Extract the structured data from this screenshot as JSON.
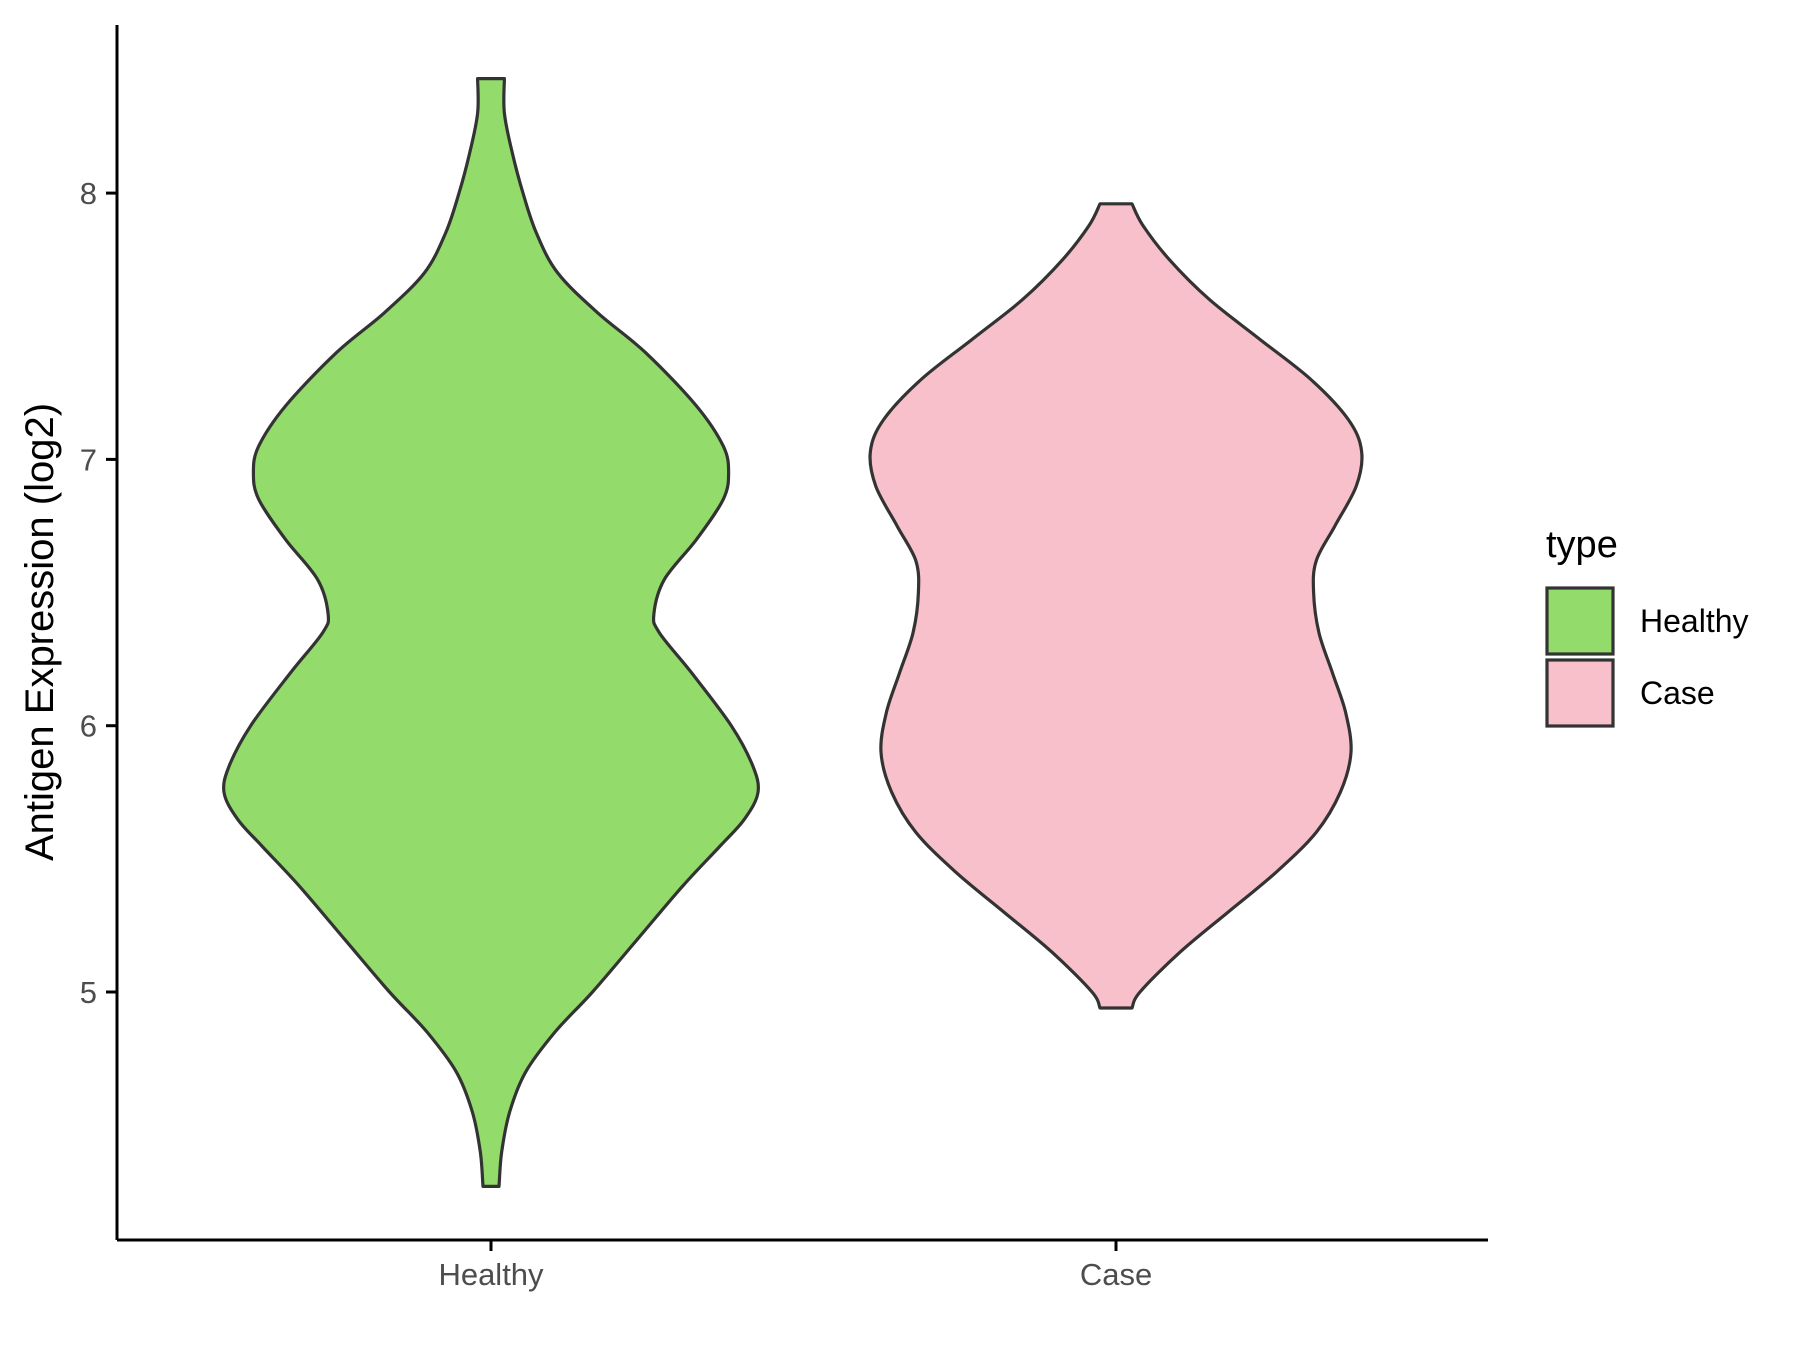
{
  "chart_data": {
    "type": "violin",
    "title": "",
    "xlabel": "",
    "ylabel": "Antigen Expression (log2)",
    "categories": [
      "Healthy",
      "Case"
    ],
    "y_ticks": [
      5,
      6,
      7,
      8
    ],
    "ylim": [
      4.1,
      8.6
    ],
    "grid": false,
    "legend": {
      "title": "type",
      "placement": "right",
      "entries": [
        "Healthy",
        "Case"
      ]
    },
    "series": [
      {
        "name": "Healthy",
        "color": "#93DC6B",
        "ymin": 4.27,
        "ymax": 8.43,
        "density_profile": [
          [
            4.27,
            0.03
          ],
          [
            4.4,
            0.04
          ],
          [
            4.55,
            0.07
          ],
          [
            4.7,
            0.13
          ],
          [
            4.85,
            0.24
          ],
          [
            5.0,
            0.38
          ],
          [
            5.2,
            0.55
          ],
          [
            5.4,
            0.72
          ],
          [
            5.55,
            0.86
          ],
          [
            5.65,
            0.95
          ],
          [
            5.75,
            1.0
          ],
          [
            5.85,
            0.98
          ],
          [
            6.0,
            0.9
          ],
          [
            6.2,
            0.75
          ],
          [
            6.35,
            0.63
          ],
          [
            6.42,
            0.61
          ],
          [
            6.55,
            0.65
          ],
          [
            6.7,
            0.77
          ],
          [
            6.85,
            0.87
          ],
          [
            6.95,
            0.89
          ],
          [
            7.05,
            0.87
          ],
          [
            7.2,
            0.77
          ],
          [
            7.4,
            0.58
          ],
          [
            7.55,
            0.4
          ],
          [
            7.7,
            0.25
          ],
          [
            7.85,
            0.17
          ],
          [
            8.0,
            0.12
          ],
          [
            8.15,
            0.08
          ],
          [
            8.3,
            0.05
          ],
          [
            8.43,
            0.05
          ]
        ]
      },
      {
        "name": "Case",
        "color": "#F7C0CB",
        "ymin": 4.94,
        "ymax": 7.96,
        "density_profile": [
          [
            4.94,
            0.06
          ],
          [
            5.0,
            0.09
          ],
          [
            5.15,
            0.24
          ],
          [
            5.3,
            0.42
          ],
          [
            5.45,
            0.6
          ],
          [
            5.6,
            0.75
          ],
          [
            5.75,
            0.84
          ],
          [
            5.9,
            0.88
          ],
          [
            6.05,
            0.86
          ],
          [
            6.2,
            0.81
          ],
          [
            6.35,
            0.76
          ],
          [
            6.5,
            0.74
          ],
          [
            6.62,
            0.75
          ],
          [
            6.75,
            0.82
          ],
          [
            6.9,
            0.9
          ],
          [
            7.03,
            0.92
          ],
          [
            7.15,
            0.87
          ],
          [
            7.3,
            0.73
          ],
          [
            7.45,
            0.54
          ],
          [
            7.6,
            0.35
          ],
          [
            7.75,
            0.2
          ],
          [
            7.88,
            0.1
          ],
          [
            7.96,
            0.06
          ]
        ]
      }
    ]
  }
}
